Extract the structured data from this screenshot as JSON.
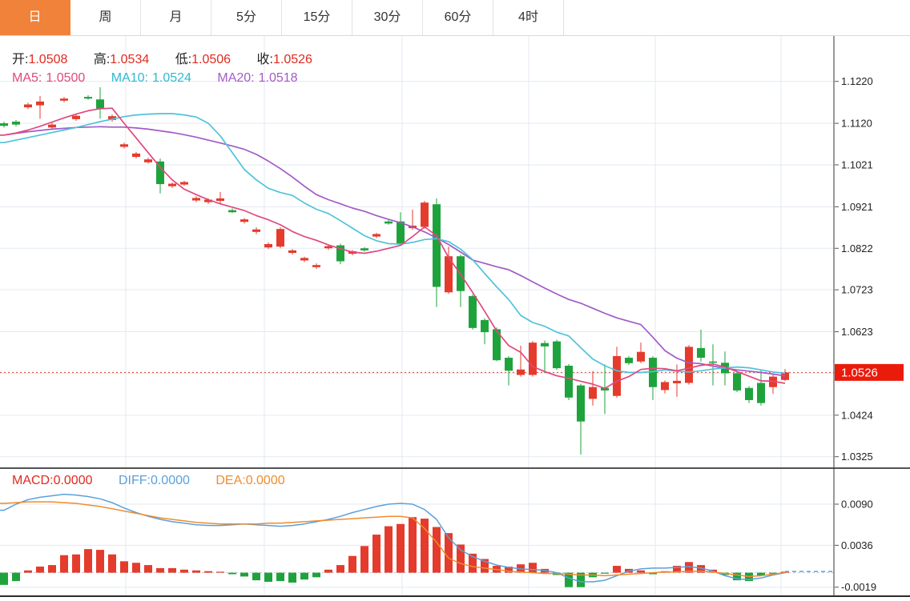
{
  "tabs": {
    "items": [
      {
        "label": "日",
        "active": true
      },
      {
        "label": "周",
        "active": false
      },
      {
        "label": "月",
        "active": false
      },
      {
        "label": "5分",
        "active": false
      },
      {
        "label": "15分",
        "active": false
      },
      {
        "label": "30分",
        "active": false
      },
      {
        "label": "60分",
        "active": false
      },
      {
        "label": "4时",
        "active": false
      }
    ]
  },
  "legend": {
    "open_label": "开:",
    "open_value": "1.0508",
    "high_label": "高:",
    "high_value": "1.0534",
    "low_label": "低:",
    "low_value": "1.0506",
    "close_label": "收:",
    "close_value": "1.0526",
    "ma5_label": "MA5:",
    "ma5_value": "1.0500",
    "ma10_label": "MA10:",
    "ma10_value": "1.0524",
    "ma20_label": "MA20:",
    "ma20_value": "1.0518"
  },
  "macd_legend": {
    "macd_label": "MACD:",
    "macd_value": "0.0000",
    "diff_label": "DIFF:",
    "diff_value": "0.0000",
    "dea_label": "DEA:",
    "dea_value": "0.0000"
  },
  "price_tag": "1.0526",
  "colors": {
    "accent_orange": "#f0823a",
    "up_red": "#e53b2c",
    "down_green": "#1ea33c",
    "tag_red": "#ea1b0b",
    "value_red": "#e02a1e",
    "ma5_pink": "#e0497e",
    "ma10_cyan": "#4fc3d9",
    "ma20_purple": "#a25bc8",
    "diff_blue": "#5aa0dc",
    "dea_orange": "#ef8c2f",
    "last_price_line": "#e03a2e",
    "grid": "#e3eaf0"
  },
  "chart_data": {
    "type": "candlestick",
    "title": "",
    "panels": [
      {
        "name": "price",
        "type": "candlestick",
        "ylim": [
          1.0325,
          1.122
        ],
        "yticks": [
          1.122,
          1.112,
          1.1021,
          1.0921,
          1.0822,
          1.0723,
          1.0623,
          1.0524,
          1.0424,
          1.0325
        ],
        "last_price": 1.0526,
        "up_color": "#e53b2c",
        "down_color": "#1ea33c",
        "candles": [
          [
            1.112,
            1.1124,
            1.111,
            1.1114
          ],
          [
            1.1124,
            1.1128,
            1.1113,
            1.1117
          ],
          [
            1.1158,
            1.1169,
            1.1154,
            1.1165
          ],
          [
            1.1163,
            1.1185,
            1.1131,
            1.1172
          ],
          [
            1.111,
            1.1121,
            1.1106,
            1.1117
          ],
          [
            1.1174,
            1.1183,
            1.117,
            1.1179
          ],
          [
            1.113,
            1.1141,
            1.1126,
            1.1138
          ],
          [
            1.1183,
            1.1187,
            1.1176,
            1.1179
          ],
          [
            1.1177,
            1.1206,
            1.1131,
            1.1155
          ],
          [
            1.1128,
            1.1141,
            1.1124,
            1.1137
          ],
          [
            1.1064,
            1.1074,
            1.106,
            1.107
          ],
          [
            1.104,
            1.1052,
            1.1036,
            1.1048
          ],
          [
            1.1027,
            1.1038,
            1.1024,
            1.1034
          ],
          [
            1.1029,
            1.1036,
            1.0953,
            1.0975
          ],
          [
            1.097,
            1.0979,
            1.0966,
            1.0976
          ],
          [
            1.0974,
            1.0983,
            1.0971,
            1.098
          ],
          [
            1.0936,
            1.0946,
            1.0932,
            1.0942
          ],
          [
            1.0932,
            1.0941,
            1.0928,
            1.0938
          ],
          [
            1.0935,
            1.0956,
            1.0927,
            1.0941
          ],
          [
            1.0913,
            1.0917,
            1.0906,
            1.0908
          ],
          [
            1.0885,
            1.0894,
            1.0881,
            1.0891
          ],
          [
            1.0861,
            1.0872,
            1.0856,
            1.0867
          ],
          [
            1.0824,
            1.0836,
            1.082,
            1.0832
          ],
          [
            1.0826,
            1.0872,
            1.0822,
            1.0868
          ],
          [
            1.0811,
            1.082,
            1.0807,
            1.0817
          ],
          [
            1.0793,
            1.0802,
            1.0789,
            1.0799
          ],
          [
            1.0777,
            1.0786,
            1.0773,
            1.0782
          ],
          [
            1.0822,
            1.0831,
            1.0818,
            1.0827
          ],
          [
            1.0829,
            1.0833,
            1.0784,
            1.0791
          ],
          [
            1.0809,
            1.0818,
            1.0805,
            1.0815
          ],
          [
            1.0822,
            1.0825,
            1.0814,
            1.0817
          ],
          [
            1.085,
            1.0859,
            1.0846,
            1.0856
          ],
          [
            1.0886,
            1.089,
            1.0878,
            1.0881
          ],
          [
            1.0886,
            1.0908,
            1.0828,
            1.0832
          ],
          [
            1.087,
            1.0914,
            1.0866,
            1.0876
          ],
          [
            1.0873,
            1.0935,
            1.0869,
            1.0931
          ],
          [
            1.0927,
            1.0941,
            1.0682,
            1.073
          ],
          [
            1.0717,
            1.0826,
            1.0713,
            1.0803
          ],
          [
            1.0803,
            1.0807,
            1.0682,
            1.072
          ],
          [
            1.0708,
            1.0712,
            1.0628,
            1.0632
          ],
          [
            1.0651,
            1.0655,
            1.0593,
            1.0622
          ],
          [
            1.0629,
            1.0633,
            1.0553,
            1.0555
          ],
          [
            1.0561,
            1.0565,
            1.0495,
            1.053
          ],
          [
            1.052,
            1.059,
            1.0516,
            1.0533
          ],
          [
            1.052,
            1.0601,
            1.0516,
            1.0597
          ],
          [
            1.0596,
            1.0602,
            1.0524,
            1.0588
          ],
          [
            1.06,
            1.0604,
            1.0532,
            1.0536
          ],
          [
            1.0542,
            1.0546,
            1.046,
            1.0466
          ],
          [
            1.0495,
            1.0499,
            1.033,
            1.0409
          ],
          [
            1.0463,
            1.0529,
            1.0447,
            1.0491
          ],
          [
            1.0489,
            1.0545,
            1.0427,
            1.0483
          ],
          [
            1.047,
            1.0587,
            1.0466,
            1.0565
          ],
          [
            1.0561,
            1.0565,
            1.0544,
            1.0548
          ],
          [
            1.0552,
            1.0597,
            1.0548,
            1.0575
          ],
          [
            1.0561,
            1.0565,
            1.046,
            1.0491
          ],
          [
            1.0484,
            1.0507,
            1.0476,
            1.0503
          ],
          [
            1.05,
            1.0545,
            1.0468,
            1.0506
          ],
          [
            1.0501,
            1.0591,
            1.0497,
            1.0587
          ],
          [
            1.0584,
            1.0628,
            1.0552,
            1.0561
          ],
          [
            1.0552,
            1.0593,
            1.0495,
            1.0549
          ],
          [
            1.0549,
            1.0576,
            1.0495,
            1.0524
          ],
          [
            1.0524,
            1.0528,
            1.0479,
            1.0483
          ],
          [
            1.0489,
            1.0493,
            1.0453,
            1.046
          ],
          [
            1.0501,
            1.0533,
            1.0447,
            1.0453
          ],
          [
            1.0491,
            1.052,
            1.0475,
            1.0516
          ],
          [
            1.0508,
            1.0534,
            1.0506,
            1.0526
          ]
        ],
        "overlays": [
          {
            "name": "MA5",
            "color": "#e0497e",
            "values": [
              1.1092,
              1.1097,
              1.1104,
              1.1113,
              1.1123,
              1.1133,
              1.1142,
              1.115,
              1.1155,
              1.1156,
              1.112,
              1.1085,
              1.105,
              1.1015,
              1.0985,
              1.0963,
              1.095,
              1.0938,
              1.0928,
              1.092,
              1.0912,
              1.09,
              1.089,
              1.0878,
              1.0862,
              1.085,
              1.0841,
              1.083,
              1.0821,
              1.0813,
              1.081,
              1.0815,
              1.0822,
              1.0829,
              1.085,
              1.0873,
              1.0852,
              1.08,
              1.076,
              1.0717,
              1.0672,
              1.0625,
              1.059,
              1.0574,
              1.054,
              1.0528,
              1.0518,
              1.0512,
              1.0505,
              1.0498,
              1.0488,
              1.0505,
              1.0516,
              1.0533,
              1.0536,
              1.0535,
              1.053,
              1.0536,
              1.0543,
              1.0546,
              1.0539,
              1.0528,
              1.0517,
              1.0506,
              1.0505,
              1.05
            ]
          },
          {
            "name": "MA10",
            "color": "#4fc3d9",
            "values": [
              1.1074,
              1.108,
              1.1086,
              1.1092,
              1.1098,
              1.1104,
              1.111,
              1.1117,
              1.1124,
              1.113,
              1.1136,
              1.114,
              1.1142,
              1.1143,
              1.1143,
              1.114,
              1.1135,
              1.112,
              1.109,
              1.105,
              1.101,
              1.0985,
              1.0965,
              1.0955,
              1.0948,
              1.093,
              1.0915,
              1.0905,
              1.0888,
              1.087,
              1.0852,
              1.084,
              1.0833,
              1.0832,
              1.0836,
              1.0843,
              1.0845,
              1.0838,
              1.082,
              1.0795,
              1.0762,
              1.073,
              1.07,
              1.0662,
              1.0645,
              1.0636,
              1.0622,
              1.0613,
              1.0585,
              1.0558,
              1.0542,
              1.053,
              1.0526,
              1.0526,
              1.0528,
              1.0532,
              1.0529,
              1.0527,
              1.053,
              1.0534,
              1.0537,
              1.0539,
              1.0537,
              1.0532,
              1.0527,
              1.0524
            ]
          },
          {
            "name": "MA20",
            "color": "#a25bc8",
            "values": [
              1.1092,
              1.1096,
              1.11,
              1.1103,
              1.1106,
              1.1108,
              1.111,
              1.1111,
              1.1112,
              1.1111,
              1.1111,
              1.1109,
              1.1106,
              1.1102,
              1.1098,
              1.1093,
              1.1087,
              1.108,
              1.1073,
              1.1066,
              1.1058,
              1.1046,
              1.103,
              1.1012,
              1.0992,
              1.097,
              1.095,
              1.0938,
              1.0928,
              1.0918,
              1.091,
              1.09,
              1.0891,
              1.0883,
              1.0873,
              1.0861,
              1.0847,
              1.0831,
              1.0813,
              1.0794,
              1.0786,
              1.0778,
              1.0771,
              1.0757,
              1.0742,
              1.0727,
              1.0713,
              1.07,
              1.0691,
              1.0679,
              1.0667,
              1.0656,
              1.0648,
              1.064,
              1.061,
              1.0578,
              1.056,
              1.0549,
              1.0547,
              1.0541,
              1.0536,
              1.0532,
              1.0529,
              1.0526,
              1.0522,
              1.0518
            ]
          }
        ]
      },
      {
        "name": "macd",
        "type": "macd",
        "yticks": [
          0.009,
          0.0036,
          -0.0019
        ],
        "histogram": [
          -0.0016,
          -0.0011,
          0.0003,
          0.0008,
          0.001,
          0.0023,
          0.0024,
          0.0031,
          0.003,
          0.0024,
          0.0015,
          0.0013,
          0.001,
          0.0006,
          0.0006,
          0.0004,
          0.0003,
          0.0002,
          0.0001,
          -0.0002,
          -0.0005,
          -0.001,
          -0.0012,
          -0.0011,
          -0.0013,
          -0.0009,
          -0.0006,
          0.0004,
          0.001,
          0.0022,
          0.0035,
          0.005,
          0.0061,
          0.0064,
          0.0073,
          0.0071,
          0.006,
          0.0052,
          0.0037,
          0.0025,
          0.0018,
          0.0009,
          0.0008,
          0.0011,
          0.0013,
          0.0005,
          -0.0003,
          -0.0019,
          -0.0019,
          -0.0006,
          -0.0001,
          0.0009,
          0.0005,
          0.0003,
          -0.0002,
          0.0002,
          0.0009,
          0.0014,
          0.001,
          0.0004,
          -0.0003,
          -0.001,
          -0.0011,
          -0.0004,
          -0.0001,
          0.0001
        ],
        "series": [
          {
            "name": "DIFF",
            "color": "#5aa0dc",
            "values": [
              0.0082,
              0.009,
              0.0096,
              0.0099,
              0.0101,
              0.0103,
              0.0102,
              0.01,
              0.0097,
              0.0092,
              0.0085,
              0.0079,
              0.0074,
              0.007,
              0.0067,
              0.0065,
              0.0063,
              0.0062,
              0.0062,
              0.0063,
              0.0064,
              0.0063,
              0.0062,
              0.0061,
              0.0062,
              0.0064,
              0.0067,
              0.007,
              0.0074,
              0.0079,
              0.0083,
              0.0087,
              0.009,
              0.0091,
              0.009,
              0.0083,
              0.007,
              0.0046,
              0.003,
              0.0021,
              0.0015,
              0.001,
              0.0007,
              0.0005,
              0.0004,
              0.0003,
              0.0,
              -0.0007,
              -0.0012,
              -0.0012,
              -0.001,
              -0.0004,
              0.0002,
              0.0005,
              0.0006,
              0.0006,
              0.0007,
              0.0008,
              0.0006,
              0.0002,
              -0.0004,
              -0.0008,
              -0.0009,
              -0.0007,
              -0.0003,
              0.0
            ]
          },
          {
            "name": "DEA",
            "color": "#ef8c2f",
            "values": [
              0.0091,
              0.0092,
              0.0093,
              0.0093,
              0.0093,
              0.0092,
              0.0091,
              0.0089,
              0.0087,
              0.0084,
              0.0081,
              0.0078,
              0.0075,
              0.0072,
              0.007,
              0.0068,
              0.0066,
              0.0065,
              0.0064,
              0.0064,
              0.0064,
              0.0064,
              0.0065,
              0.0065,
              0.0066,
              0.0067,
              0.0068,
              0.0069,
              0.007,
              0.0071,
              0.0072,
              0.0073,
              0.0074,
              0.0074,
              0.0072,
              0.0058,
              0.004,
              0.0019,
              0.0012,
              0.0008,
              0.0006,
              0.0004,
              0.0002,
              0.0001,
              0.0,
              -0.0001,
              -0.0001,
              -0.0002,
              -0.0003,
              -0.0003,
              -0.0004,
              -0.0003,
              -0.0002,
              -0.0001,
              0.0,
              0.0001,
              0.0001,
              0.0002,
              0.0002,
              0.0001,
              -0.0001,
              -0.0003,
              -0.0005,
              -0.0004,
              -0.0002,
              0.0
            ]
          }
        ]
      }
    ]
  }
}
